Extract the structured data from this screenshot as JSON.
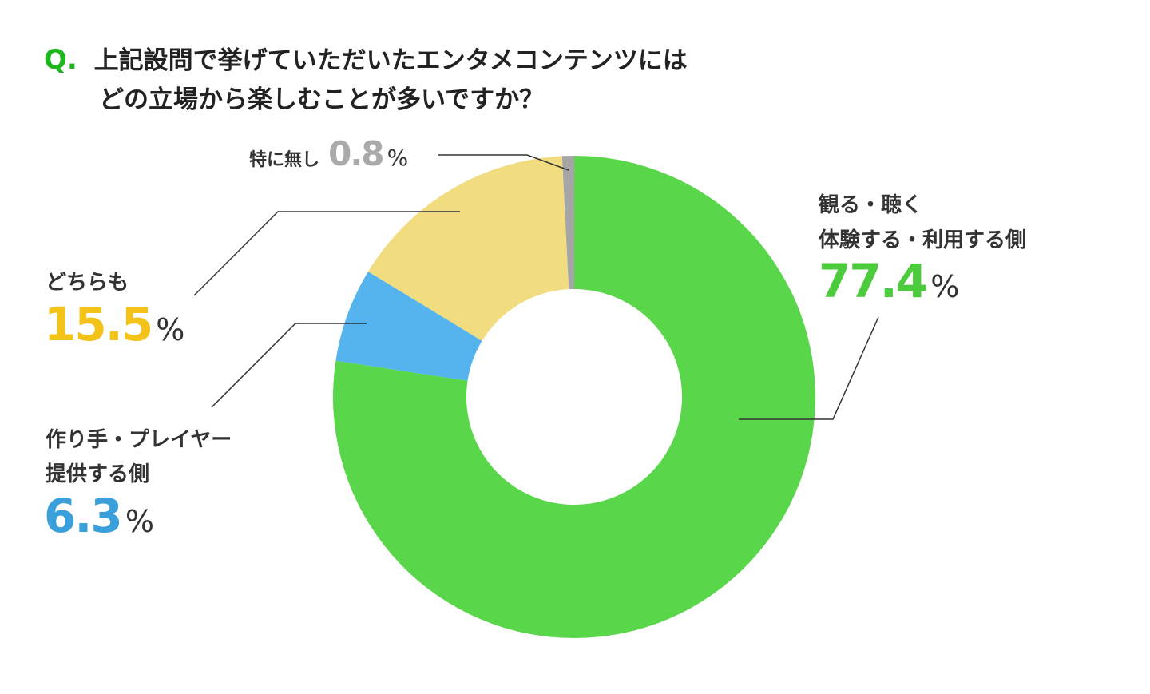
{
  "chart_data": {
    "type": "pie",
    "donut": true,
    "title_prefix": "Q.",
    "title_lines": [
      "上記設問で挙げていただいたエンタメコンテンツには",
      "どの立場から楽しむことが多いですか？"
    ],
    "unit": "%",
    "slices": [
      {
        "label_lines": [
          "観る・聴く",
          "体験する・利用する側"
        ],
        "value": 77.4,
        "display": "77.4",
        "color": "#5ad64b",
        "text_color": "#4ccc3c"
      },
      {
        "label_lines": [
          "作り手・プレイヤー",
          "提供する側"
        ],
        "value": 6.3,
        "display": "6.3",
        "color": "#55b4ee",
        "text_color": "#3aa0dc"
      },
      {
        "label_lines": [
          "どちらも"
        ],
        "value": 15.5,
        "display": "15.5",
        "color": "#f2dc80",
        "text_color": "#f3c31a"
      },
      {
        "label_lines": [
          "特に無し"
        ],
        "value": 0.8,
        "display": "0.8",
        "color": "#a6a6a6",
        "text_color": "#aaaaaa"
      }
    ],
    "start": "top",
    "direction": "clockwise"
  }
}
